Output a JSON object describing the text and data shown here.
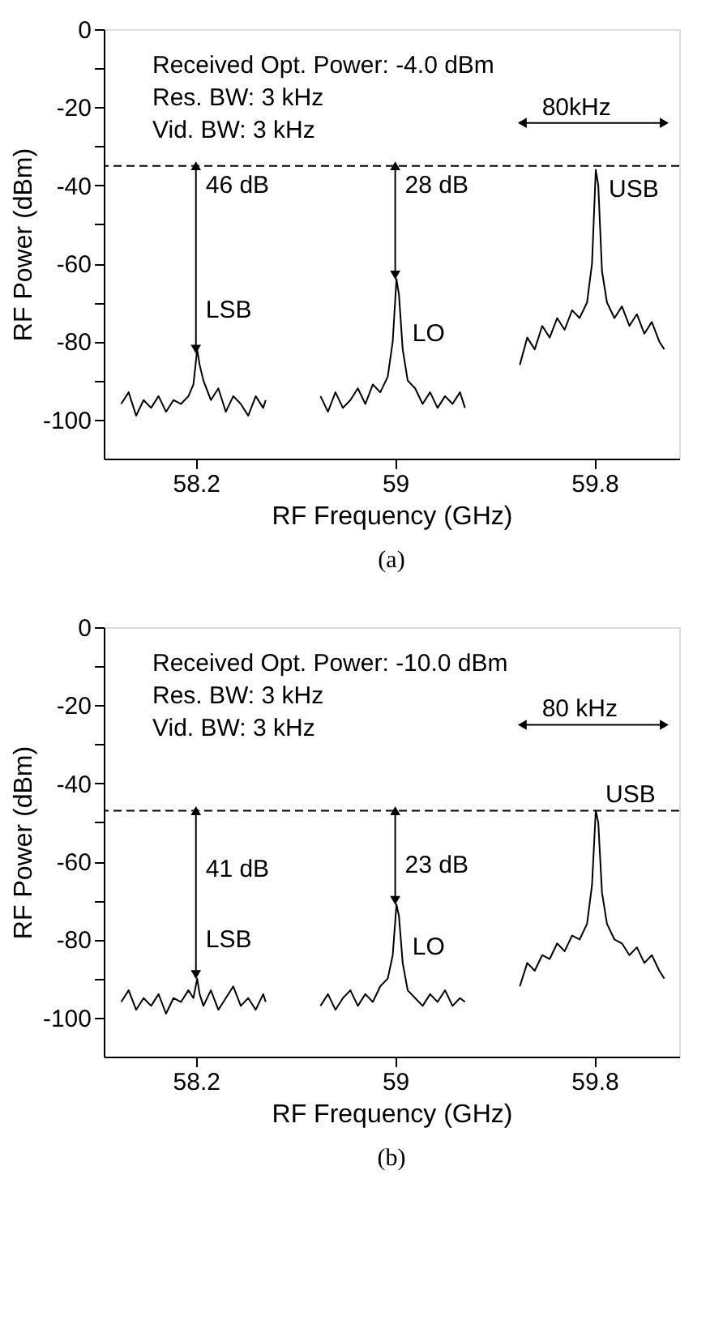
{
  "chart_data": [
    {
      "type": "line",
      "title": "(a)",
      "xlabel": "RF Frequency (GHz)",
      "ylabel": "RF Power (dBm)",
      "xlim": [
        57.83,
        60.14
      ],
      "xticks": [
        58.2,
        59,
        59.8
      ],
      "ylim": [
        -110,
        0
      ],
      "yticks": [
        0,
        {
          "value": -10,
          "label": null
        },
        -20,
        {
          "value": -30,
          "label": null
        },
        -40,
        {
          "value": -50,
          "label": null
        },
        -60,
        {
          "value": -70,
          "label": null
        },
        -80,
        {
          "value": -90,
          "label": null
        },
        -100
      ],
      "annotations": [
        "Received Opt. Power: -4.0 dBm",
        "Res. BW: 3 kHz",
        "Vid. BW: 3 kHz",
        {
          "text": "46 dB",
          "x": 58.2,
          "y": -44
        },
        {
          "text": "28 dB",
          "x": 59,
          "y": -44
        },
        {
          "text": "LSB",
          "x": 58.2,
          "y": -76
        },
        {
          "text": "LO",
          "x": 59.03,
          "y": -82
        },
        {
          "text": "USB",
          "x": 59.818,
          "y": -45
        },
        {
          "text": "80kHz",
          "x": 59.55,
          "y": -24
        }
      ],
      "ref_lines": [
        {
          "axis": "y",
          "value": -35,
          "line_style": "dashed",
          "color": "#000000"
        }
      ],
      "series": [
        {
          "type": "line",
          "color": "#000000",
          "x": [
            57.9,
            57.93,
            57.96,
            57.99,
            58.02,
            58.05,
            58.08,
            58.11,
            58.14,
            58.17,
            58.19,
            58.205,
            58.215,
            58.23,
            58.26,
            58.29,
            58.32,
            58.35,
            58.38,
            58.41,
            58.44,
            58.47,
            58.48
          ],
          "values": [
            -96,
            -93,
            -99,
            -95,
            -97,
            -94,
            -98,
            -95,
            -96,
            -94,
            -91,
            -82,
            -86,
            -90,
            -95,
            -92,
            -98,
            -94,
            -96,
            -99,
            -94,
            -97,
            -95
          ]
        },
        {
          "type": "line",
          "color": "#000000",
          "x": [
            58.7,
            58.73,
            58.76,
            58.79,
            58.82,
            58.85,
            58.88,
            58.91,
            58.94,
            58.97,
            58.99,
            59.005,
            59.015,
            59.03,
            59.05,
            59.08,
            59.11,
            59.14,
            59.17,
            59.2,
            59.23,
            59.26,
            59.28
          ],
          "values": [
            -94,
            -98,
            -93,
            -97,
            -95,
            -92,
            -96,
            -91,
            -93,
            -89,
            -80,
            -64,
            -68,
            -82,
            -90,
            -92,
            -96,
            -93,
            -97,
            -94,
            -96,
            -93,
            -97
          ]
        },
        {
          "type": "line",
          "color": "#000000",
          "x": [
            59.5,
            59.53,
            59.56,
            59.59,
            59.62,
            59.65,
            59.68,
            59.71,
            59.74,
            59.77,
            59.79,
            59.805,
            59.815,
            59.83,
            59.85,
            59.88,
            59.91,
            59.94,
            59.97,
            60.0,
            60.03,
            60.06,
            60.08
          ],
          "values": [
            -86,
            -79,
            -82,
            -76,
            -79,
            -74,
            -77,
            -72,
            -74,
            -70,
            -60,
            -36,
            -40,
            -62,
            -70,
            -74,
            -71,
            -76,
            -73,
            -78,
            -75,
            -80,
            -82
          ]
        },
        {
          "type": "line",
          "color": "#000000",
          "marker": "triangle",
          "x": [
            58.2,
            58.2
          ],
          "values": [
            -35,
            -82
          ]
        },
        {
          "type": "line",
          "color": "#000000",
          "marker": "triangle",
          "x": [
            59,
            59
          ],
          "values": [
            -35,
            -63
          ]
        },
        {
          "type": "line",
          "color": "#000000",
          "marker": "triangle",
          "x": [
            59.51,
            60.08
          ],
          "values": [
            -24,
            -24
          ]
        }
      ]
    },
    {
      "type": "line",
      "title": "(b)",
      "xlabel": "RF Frequency (GHz)",
      "ylabel": "RF Power (dBm)",
      "xlim": [
        57.83,
        60.14
      ],
      "xticks": [
        58.2,
        59,
        59.8
      ],
      "ylim": [
        -110,
        0
      ],
      "yticks": [
        0,
        {
          "value": -10,
          "label": null
        },
        -20,
        {
          "value": -30,
          "label": null
        },
        -40,
        {
          "value": -50,
          "label": null
        },
        -60,
        {
          "value": -70,
          "label": null
        },
        -80,
        {
          "value": -90,
          "label": null
        },
        -100
      ],
      "annotations": [
        "Received Opt. Power: -10.0 dBm",
        "Res. BW: 3 kHz",
        "Vid. BW: 3 kHz",
        {
          "text": "41 dB",
          "x": 58.2,
          "y": -66
        },
        {
          "text": "23 dB",
          "x": 59,
          "y": -65
        },
        {
          "text": "LSB",
          "x": 58.2,
          "y": -84
        },
        {
          "text": "LO",
          "x": 59.03,
          "y": -86
        },
        {
          "text": "USB",
          "x": 59.805,
          "y": -47
        },
        {
          "text": "80 kHz",
          "x": 59.55,
          "y": -25
        }
      ],
      "ref_lines": [
        {
          "axis": "y",
          "value": -47,
          "line_style": "dashed",
          "color": "#000000"
        }
      ],
      "series": [
        {
          "type": "line",
          "color": "#000000",
          "x": [
            57.9,
            57.93,
            57.96,
            57.99,
            58.02,
            58.05,
            58.08,
            58.11,
            58.14,
            58.17,
            58.19,
            58.205,
            58.215,
            58.23,
            58.26,
            58.29,
            58.32,
            58.35,
            58.38,
            58.41,
            58.44,
            58.47,
            58.48
          ],
          "values": [
            -96,
            -93,
            -98,
            -95,
            -97,
            -94,
            -99,
            -95,
            -96,
            -93,
            -95,
            -90,
            -94,
            -97,
            -93,
            -98,
            -95,
            -92,
            -97,
            -95,
            -98,
            -94,
            -96
          ]
        },
        {
          "type": "line",
          "color": "#000000",
          "x": [
            58.7,
            58.73,
            58.76,
            58.79,
            58.82,
            58.85,
            58.88,
            58.91,
            58.94,
            58.97,
            58.99,
            59.005,
            59.015,
            59.03,
            59.05,
            59.08,
            59.11,
            59.14,
            59.17,
            59.2,
            59.23,
            59.26,
            59.28
          ],
          "values": [
            -97,
            -94,
            -98,
            -95,
            -93,
            -97,
            -94,
            -96,
            -92,
            -90,
            -84,
            -71,
            -74,
            -86,
            -93,
            -95,
            -97,
            -94,
            -96,
            -93,
            -97,
            -95,
            -96
          ]
        },
        {
          "type": "line",
          "color": "#000000",
          "x": [
            59.5,
            59.53,
            59.56,
            59.59,
            59.62,
            59.65,
            59.68,
            59.71,
            59.74,
            59.77,
            59.79,
            59.805,
            59.815,
            59.83,
            59.85,
            59.88,
            59.91,
            59.94,
            59.97,
            60.0,
            60.03,
            60.06,
            60.08
          ],
          "values": [
            -92,
            -86,
            -88,
            -84,
            -85,
            -81,
            -83,
            -79,
            -80,
            -76,
            -66,
            -47,
            -50,
            -68,
            -76,
            -80,
            -81,
            -84,
            -82,
            -86,
            -84,
            -88,
            -90
          ]
        },
        {
          "type": "line",
          "color": "#000000",
          "marker": "triangle",
          "x": [
            58.2,
            58.2
          ],
          "values": [
            -47,
            -89
          ]
        },
        {
          "type": "line",
          "color": "#000000",
          "marker": "triangle",
          "x": [
            59,
            59
          ],
          "values": [
            -47,
            -70
          ]
        },
        {
          "type": "line",
          "color": "#000000",
          "marker": "triangle",
          "x": [
            59.51,
            60.08
          ],
          "values": [
            -25,
            -25
          ]
        }
      ]
    }
  ]
}
